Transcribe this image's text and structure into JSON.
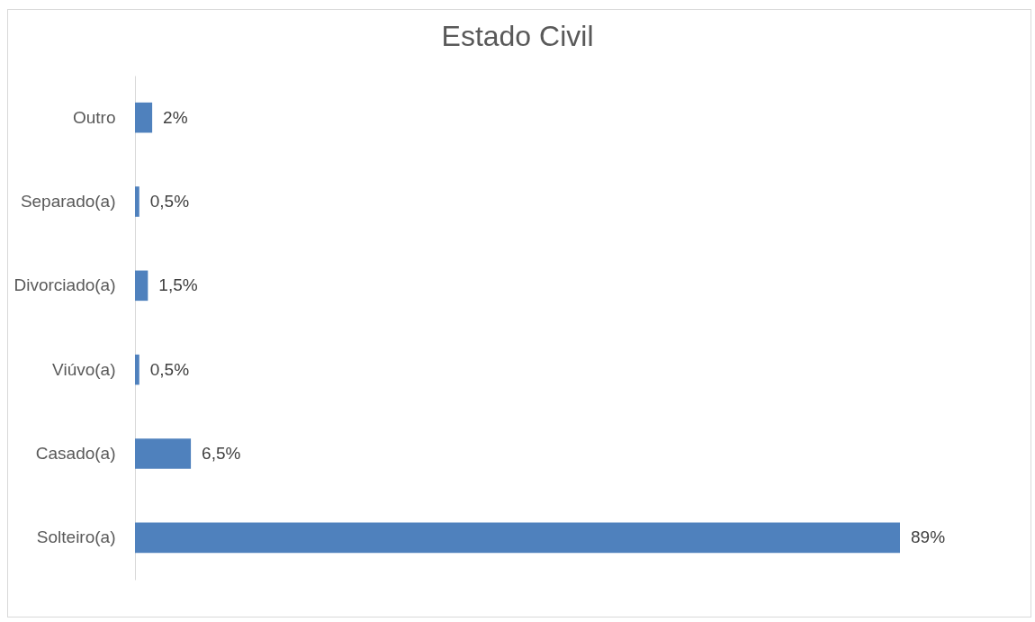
{
  "chart_data": {
    "type": "bar",
    "orientation": "horizontal",
    "title": "Estado Civil",
    "categories": [
      "Outro",
      "Separado(a)",
      "Divorciado(a)",
      "Viúvo(a)",
      "Casado(a)",
      "Solteiro(a)"
    ],
    "values": [
      2,
      0.5,
      1.5,
      0.5,
      6.5,
      89
    ],
    "value_labels": [
      "2%",
      "0,5%",
      "1,5%",
      "0,5%",
      "6,5%",
      "89%"
    ],
    "color": "#4f81bd",
    "grid": false
  }
}
